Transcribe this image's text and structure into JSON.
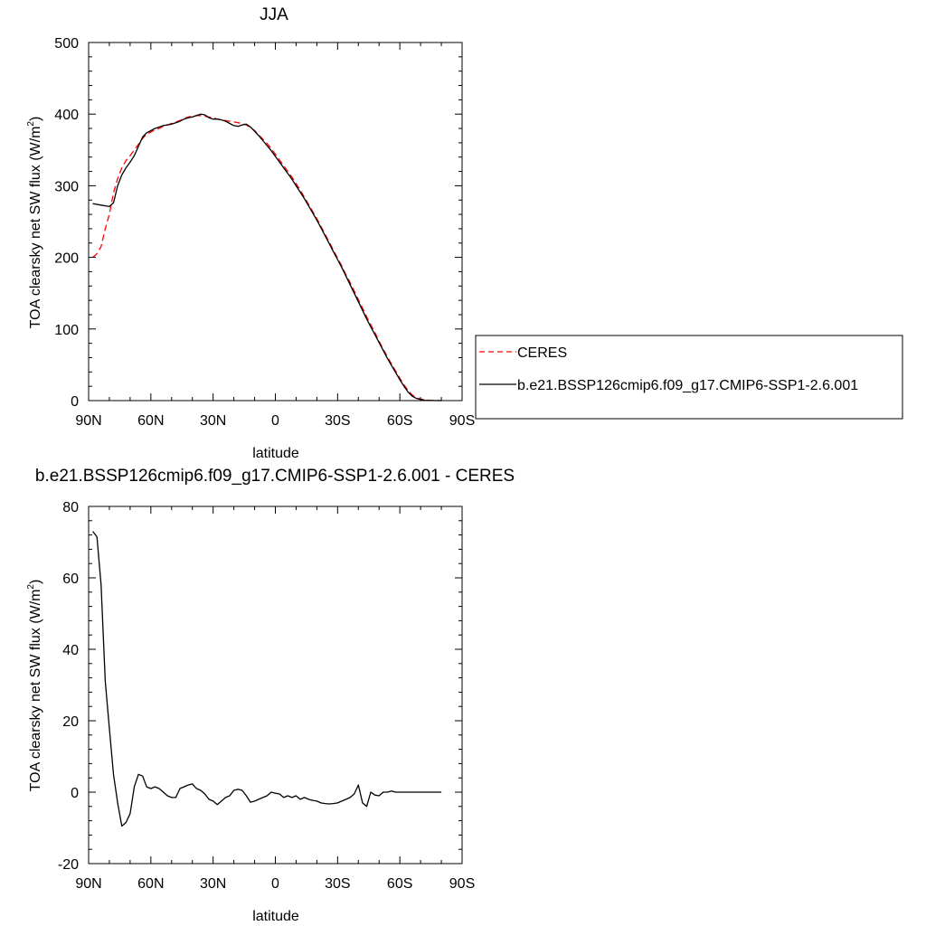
{
  "chart_data": [
    {
      "type": "line",
      "title": "JJA",
      "xlabel": "latitude",
      "ylabel": "TOA clearsky net SW flux (W/m",
      "ylabel_sup": "2",
      "ylabel_close": ")",
      "xlim": [
        90,
        -90
      ],
      "ylim": [
        0,
        500
      ],
      "xticks": [
        90,
        60,
        30,
        0,
        -30,
        -60,
        -90
      ],
      "xtick_labels": [
        "90N",
        "60N",
        "30N",
        "0",
        "30S",
        "60S",
        "90S"
      ],
      "yticks": [
        0,
        100,
        200,
        300,
        400,
        500
      ],
      "ytick_labels": [
        "0",
        "100",
        "200",
        "300",
        "400",
        "500"
      ],
      "legend_position": "right",
      "series": [
        {
          "name": "CERES",
          "color": "#ff0000",
          "dash": "dashed",
          "x": [
            88,
            86,
            84,
            82,
            80,
            78,
            76,
            74,
            72,
            70,
            68,
            66,
            64,
            62,
            60,
            58,
            56,
            54,
            52,
            50,
            48,
            46,
            44,
            42,
            40,
            38,
            36,
            34,
            32,
            30,
            28,
            26,
            24,
            22,
            20,
            18,
            16,
            14,
            12,
            10,
            8,
            6,
            4,
            2,
            0,
            -2,
            -4,
            -6,
            -8,
            -10,
            -12,
            -14,
            -16,
            -18,
            -20,
            -22,
            -24,
            -26,
            -28,
            -30,
            -32,
            -34,
            -36,
            -38,
            -40,
            -42,
            -44,
            -46,
            -48,
            -50,
            -52,
            -54,
            -56,
            -58,
            -60,
            -62,
            -64,
            -66,
            -68,
            -70,
            -72,
            -74,
            -76,
            -78,
            -80
          ],
          "y": [
            200,
            205,
            215,
            240,
            260,
            290,
            310,
            325,
            335,
            342,
            350,
            358,
            366,
            372,
            375,
            378,
            380,
            383,
            385,
            387,
            389,
            391,
            394,
            396,
            397,
            398,
            398,
            397,
            396,
            395,
            393,
            392,
            391,
            390,
            389,
            388,
            387,
            385,
            381,
            377,
            371,
            365,
            359,
            352,
            344,
            336,
            328,
            320,
            312,
            303,
            294,
            284,
            274,
            264,
            254,
            243,
            232,
            221,
            210,
            199,
            188,
            176,
            165,
            153,
            141,
            129,
            117,
            106,
            95,
            83,
            72,
            61,
            51,
            41,
            31,
            22,
            14,
            8,
            4,
            2,
            1,
            0.5,
            0.2,
            0.1,
            0
          ]
        },
        {
          "name": "b.e21.BSSP126cmip6.f09_g17.CMIP6-SSP1-2.6.001",
          "color": "#000000",
          "dash": "solid",
          "x": [
            88,
            86,
            84,
            82,
            80,
            78,
            76,
            74,
            72,
            70,
            68,
            66,
            64,
            62,
            60,
            58,
            56,
            54,
            52,
            50,
            48,
            46,
            44,
            42,
            40,
            38,
            36,
            34,
            32,
            30,
            28,
            26,
            24,
            22,
            20,
            18,
            16,
            14,
            12,
            10,
            8,
            6,
            4,
            2,
            0,
            -2,
            -4,
            -6,
            -8,
            -10,
            -12,
            -14,
            -16,
            -18,
            -20,
            -22,
            -24,
            -26,
            -28,
            -30,
            -32,
            -34,
            -36,
            -38,
            -40,
            -42,
            -44,
            -46,
            -48,
            -50,
            -52,
            -54,
            -56,
            -58,
            -60,
            -62,
            -64,
            -66,
            -68,
            -70,
            -72,
            -74,
            -76,
            -78,
            -80
          ],
          "y": [
            275,
            274,
            273,
            272,
            271,
            276,
            300,
            315,
            325,
            333,
            342,
            355,
            368,
            374,
            377,
            380,
            382,
            384,
            385,
            386,
            388,
            390,
            393,
            395,
            396,
            398,
            400,
            399,
            395,
            393,
            393,
            392,
            390,
            387,
            384,
            383,
            385,
            386,
            382,
            376,
            370,
            363,
            356,
            349,
            341,
            333,
            325,
            317,
            309,
            300,
            291,
            282,
            272,
            262,
            252,
            241,
            230,
            219,
            208,
            197,
            186,
            174,
            162,
            150,
            138,
            126,
            114,
            103,
            92,
            81,
            70,
            59,
            49,
            39,
            29,
            20,
            12,
            6,
            3,
            1.5,
            0.5,
            0.2,
            0.1,
            0,
            0
          ]
        }
      ]
    },
    {
      "type": "line",
      "title": "b.e21.BSSP126cmip6.f09_g17.CMIP6-SSP1-2.6.001 - CERES",
      "xlabel": "latitude",
      "ylabel": "TOA clearsky net SW flux (W/m",
      "ylabel_sup": "2",
      "ylabel_close": ")",
      "xlim": [
        90,
        -90
      ],
      "ylim": [
        -20,
        80
      ],
      "xticks": [
        90,
        60,
        30,
        0,
        -30,
        -60,
        -90
      ],
      "xtick_labels": [
        "90N",
        "60N",
        "30N",
        "0",
        "30S",
        "60S",
        "90S"
      ],
      "yticks": [
        -20,
        0,
        20,
        40,
        60,
        80
      ],
      "ytick_labels": [
        "-20",
        "0",
        "20",
        "40",
        "60",
        "80"
      ],
      "series": [
        {
          "color": "#000000",
          "dash": "solid",
          "x": [
            88,
            86,
            84,
            82,
            80,
            78,
            76,
            74,
            72,
            70,
            68,
            66,
            64,
            62,
            60,
            58,
            56,
            54,
            52,
            50,
            48,
            46,
            44,
            42,
            40,
            38,
            36,
            34,
            32,
            30,
            28,
            26,
            24,
            22,
            20,
            18,
            16,
            14,
            12,
            10,
            8,
            6,
            4,
            2,
            0,
            -2,
            -4,
            -6,
            -8,
            -10,
            -12,
            -14,
            -16,
            -18,
            -20,
            -22,
            -24,
            -26,
            -28,
            -30,
            -32,
            -34,
            -36,
            -38,
            -40,
            -42,
            -44,
            -46,
            -48,
            -50,
            -52,
            -54,
            -56,
            -58,
            -60,
            -62,
            -64,
            -66,
            -68,
            -70,
            -72,
            -74,
            -76,
            -78,
            -80
          ],
          "y": [
            73,
            71.5,
            58,
            31,
            18,
            5,
            -3,
            -9.5,
            -8.5,
            -6,
            1.5,
            5,
            4.5,
            1.5,
            1,
            1.5,
            1,
            0,
            -1,
            -1.5,
            -1.5,
            1,
            1.5,
            2,
            2.3,
            1,
            0.5,
            -0.5,
            -2,
            -2.5,
            -3.5,
            -2.5,
            -1.5,
            -1,
            0.5,
            0.8,
            0.5,
            -1,
            -2.8,
            -2.5,
            -2,
            -1.5,
            -1,
            0,
            -0.3,
            -0.5,
            -1.5,
            -1,
            -1.5,
            -1,
            -2,
            -1.5,
            -2,
            -2.3,
            -2.5,
            -3,
            -3.2,
            -3.3,
            -3.2,
            -3,
            -2.5,
            -2,
            -1.5,
            -0.5,
            2,
            -3,
            -4,
            0,
            -0.8,
            -1,
            0,
            0,
            0.3,
            0,
            0,
            0,
            0,
            0,
            0,
            0,
            0,
            0,
            0,
            0,
            0
          ]
        }
      ]
    }
  ]
}
